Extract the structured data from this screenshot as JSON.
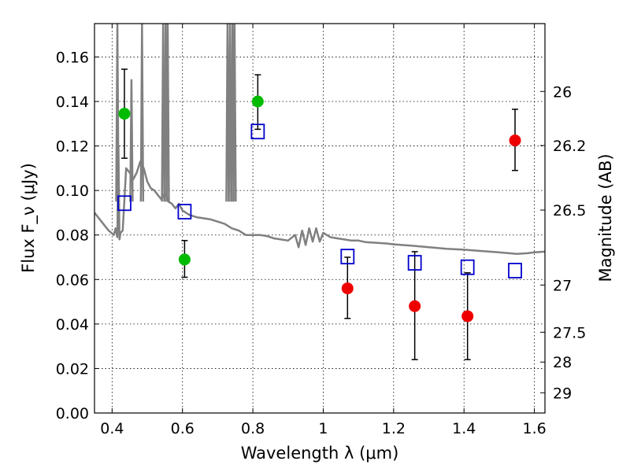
{
  "chart_data": {
    "type": "scatter",
    "xlabel": "Wavelength λ (μm)",
    "ylabel": "Flux F_ν (μJy)",
    "y2label": "Magnitude (AB)",
    "xlim": [
      0.35,
      1.63
    ],
    "ylim": [
      0.0,
      0.175
    ],
    "grid": true,
    "x_ticks": [
      0.4,
      0.6,
      0.8,
      1.0,
      1.2,
      1.4,
      1.6
    ],
    "x_tick_labels": [
      "0.4",
      "0.6",
      "0.8",
      "1",
      "1.2",
      "1.4",
      "1.6"
    ],
    "y_ticks": [
      0.0,
      0.02,
      0.04,
      0.06,
      0.08,
      0.1,
      0.12,
      0.14,
      0.16
    ],
    "y_tick_labels": [
      "0.00",
      "0.02",
      "0.04",
      "0.06",
      "0.08",
      "0.10",
      "0.12",
      "0.14",
      "0.16"
    ],
    "y2_ticks": [
      {
        "label": "26",
        "flux": 0.1445
      },
      {
        "label": "26.2",
        "flux": 0.1202
      },
      {
        "label": "26.5",
        "flux": 0.0912
      },
      {
        "label": "27",
        "flux": 0.0575
      },
      {
        "label": "27.5",
        "flux": 0.0363
      },
      {
        "label": "28",
        "flux": 0.0229
      },
      {
        "label": "29",
        "flux": 0.0091
      }
    ],
    "series": [
      {
        "color": "#00bb00",
        "marker": "circle",
        "points": [
          {
            "x": 0.435,
            "y": 0.1345,
            "err_low": 0.1145,
            "err_high": 0.1545
          },
          {
            "x": 0.606,
            "y": 0.069,
            "err_low": 0.061,
            "err_high": 0.0775
          },
          {
            "x": 0.814,
            "y": 0.14,
            "err_low": 0.1275,
            "err_high": 0.152
          }
        ]
      },
      {
        "color": "#ee0000",
        "marker": "circle",
        "points": [
          {
            "x": 1.069,
            "y": 0.056,
            "err_low": 0.0425,
            "err_high": 0.07
          },
          {
            "x": 1.26,
            "y": 0.048,
            "err_low": 0.024,
            "err_high": 0.0725
          },
          {
            "x": 1.41,
            "y": 0.0435,
            "err_low": 0.024,
            "err_high": 0.063
          },
          {
            "x": 1.545,
            "y": 0.1225,
            "err_low": 0.109,
            "err_high": 0.1365
          }
        ]
      },
      {
        "color": "#0000cc",
        "marker": "square-open",
        "points": [
          {
            "x": 0.435,
            "y": 0.0943
          },
          {
            "x": 0.606,
            "y": 0.0905
          },
          {
            "x": 0.814,
            "y": 0.1265
          },
          {
            "x": 1.069,
            "y": 0.0703
          },
          {
            "x": 1.26,
            "y": 0.0675
          },
          {
            "x": 1.41,
            "y": 0.0655
          },
          {
            "x": 1.545,
            "y": 0.064
          }
        ]
      }
    ],
    "model_spectrum": {
      "color": "#808080",
      "points": [
        [
          0.35,
          0.09
        ],
        [
          0.37,
          0.086
        ],
        [
          0.39,
          0.082
        ],
        [
          0.405,
          0.08
        ],
        [
          0.41,
          0.083
        ],
        [
          0.415,
          0.079
        ],
        [
          0.418,
          0.12
        ],
        [
          0.421,
          0.078
        ],
        [
          0.424,
          0.081
        ],
        [
          0.43,
          0.082
        ],
        [
          0.44,
          0.11
        ],
        [
          0.45,
          0.108
        ],
        [
          0.46,
          0.105
        ],
        [
          0.47,
          0.108
        ],
        [
          0.48,
          0.113
        ],
        [
          0.49,
          0.11
        ],
        [
          0.5,
          0.104
        ],
        [
          0.51,
          0.101
        ],
        [
          0.52,
          0.1
        ],
        [
          0.53,
          0.098
        ],
        [
          0.54,
          0.096
        ],
        [
          0.55,
          0.099
        ],
        [
          0.56,
          0.095
        ],
        [
          0.57,
          0.094
        ],
        [
          0.58,
          0.092
        ],
        [
          0.59,
          0.094
        ],
        [
          0.6,
          0.091
        ],
        [
          0.62,
          0.089
        ],
        [
          0.64,
          0.088
        ],
        [
          0.66,
          0.0875
        ],
        [
          0.68,
          0.087
        ],
        [
          0.7,
          0.086
        ],
        [
          0.72,
          0.085
        ],
        [
          0.74,
          0.083
        ],
        [
          0.76,
          0.082
        ],
        [
          0.78,
          0.08
        ],
        [
          0.8,
          0.08
        ],
        [
          0.82,
          0.08
        ],
        [
          0.84,
          0.0795
        ],
        [
          0.86,
          0.0785
        ],
        [
          0.88,
          0.078
        ],
        [
          0.9,
          0.0775
        ],
        [
          0.92,
          0.08
        ],
        [
          0.93,
          0.0745
        ],
        [
          0.94,
          0.082
        ],
        [
          0.95,
          0.0755
        ],
        [
          0.96,
          0.083
        ],
        [
          0.97,
          0.077
        ],
        [
          0.98,
          0.083
        ],
        [
          0.99,
          0.077
        ],
        [
          1.0,
          0.081
        ],
        [
          1.02,
          0.079
        ],
        [
          1.04,
          0.0785
        ],
        [
          1.06,
          0.078
        ],
        [
          1.08,
          0.0775
        ],
        [
          1.1,
          0.0775
        ],
        [
          1.12,
          0.0768
        ],
        [
          1.15,
          0.0765
        ],
        [
          1.18,
          0.0762
        ],
        [
          1.2,
          0.0758
        ],
        [
          1.25,
          0.0752
        ],
        [
          1.3,
          0.0745
        ],
        [
          1.35,
          0.0738
        ],
        [
          1.4,
          0.0734
        ],
        [
          1.45,
          0.0728
        ],
        [
          1.5,
          0.0722
        ],
        [
          1.55,
          0.0715
        ],
        [
          1.58,
          0.0718
        ],
        [
          1.6,
          0.0722
        ],
        [
          1.63,
          0.0725
        ]
      ],
      "spikes": [
        {
          "x": 0.415,
          "y": 0.175
        },
        {
          "x": 0.485,
          "y": 0.175
        },
        {
          "x": 0.455,
          "y": 0.15
        },
        {
          "x": 0.545,
          "y": 0.175
        },
        {
          "x": 0.552,
          "y": 0.175
        },
        {
          "x": 0.558,
          "y": 0.175
        },
        {
          "x": 0.728,
          "y": 0.175
        },
        {
          "x": 0.735,
          "y": 0.175
        },
        {
          "x": 0.742,
          "y": 0.175
        },
        {
          "x": 0.748,
          "y": 0.175
        }
      ]
    }
  }
}
